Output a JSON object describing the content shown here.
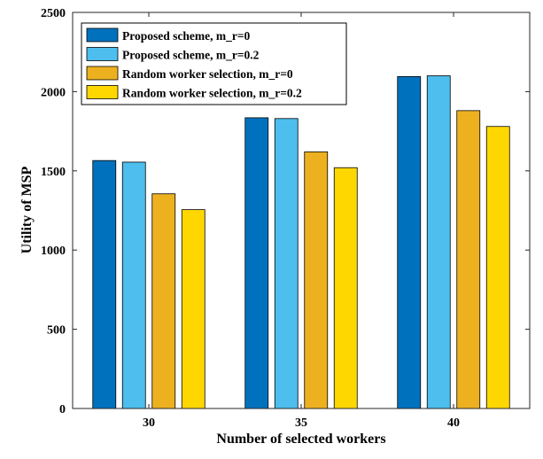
{
  "chart_data": {
    "type": "bar",
    "categories": [
      "30",
      "35",
      "40"
    ],
    "xlabel": "Number of selected workers",
    "ylabel": "Utility of MSP",
    "ylim": [
      0,
      2500
    ],
    "yticks": [
      "0",
      "500",
      "1000",
      "1500",
      "2000",
      "2500"
    ],
    "grid": false,
    "legend_position": "top-left",
    "series": [
      {
        "name": "Proposed scheme, m_r=0",
        "color": "#0072BD",
        "values": [
          1565,
          1835,
          2095
        ]
      },
      {
        "name": "Proposed scheme, m_r=0.2",
        "color": "#4DBEEE",
        "values": [
          1555,
          1830,
          2100
        ]
      },
      {
        "name": "Random worker selection, m_r=0",
        "color": "#EDB120",
        "values": [
          1355,
          1620,
          1880
        ]
      },
      {
        "name": "Random worker selection, m_r=0.2",
        "color": "#FFD700",
        "values": [
          1255,
          1520,
          1780
        ]
      }
    ]
  }
}
